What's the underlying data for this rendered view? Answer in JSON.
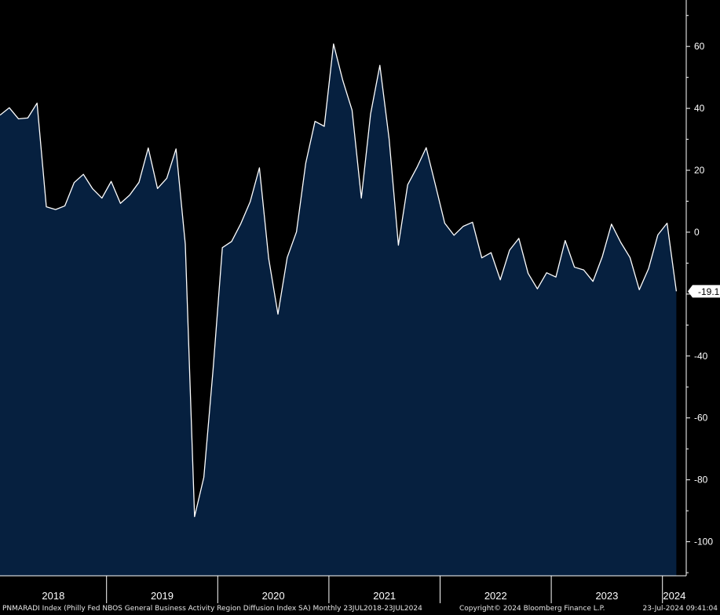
{
  "chart_data": {
    "type": "area",
    "x_start": "2018-01",
    "x_end": "2024-07",
    "x_labels": [
      "2018",
      "2019",
      "2020",
      "2021",
      "2022",
      "2023",
      "2024"
    ],
    "y_ticks": [
      60,
      40,
      20,
      0,
      -20,
      -40,
      -60,
      -80,
      -100
    ],
    "ylim": [
      -111,
      75
    ],
    "y_axis_side": "right",
    "last_value_label": "-19.1",
    "values": [
      37.8,
      40.2,
      36.6,
      36.9,
      41.7,
      8.2,
      7.3,
      8.5,
      16.0,
      18.7,
      14.0,
      11.0,
      16.4,
      9.3,
      12.0,
      16.1,
      27.2,
      14.1,
      17.4,
      26.9,
      -3.9,
      -91.9,
      -79.2,
      -44.3,
      -5.0,
      -3.0,
      2.8,
      9.8,
      20.8,
      -8.5,
      -26.5,
      -8.2,
      0.1,
      22.3,
      35.8,
      34.2,
      60.8,
      49.0,
      39.4,
      11.0,
      38.2,
      53.9,
      30.1,
      -4.2,
      15.3,
      20.9,
      27.3,
      15.2,
      2.9,
      -1.0,
      1.9,
      3.2,
      -8.3,
      -6.6,
      -15.4,
      -5.8,
      -2.0,
      -13.3,
      -18.3,
      -13.1,
      -14.5,
      -2.7,
      -11.3,
      -12.2,
      -15.9,
      -8.0,
      2.6,
      -3.3,
      -8.2,
      -18.6,
      -11.8,
      -0.9,
      2.9,
      -19.1
    ],
    "colors": {
      "background": "#000000",
      "area_fill": "#06203f",
      "line": "#ffffff",
      "text": "#ffffff"
    }
  },
  "footer": {
    "description": "PNMARADI Index (Philly Fed NBOS General Business Activity Region Diffusion Index SA)  Monthly 23JUL2018-23JUL2024",
    "copyright": "Copyright© 2024 Bloomberg Finance L.P.",
    "timestamp": "23-Jul-2024 09:41:04"
  }
}
